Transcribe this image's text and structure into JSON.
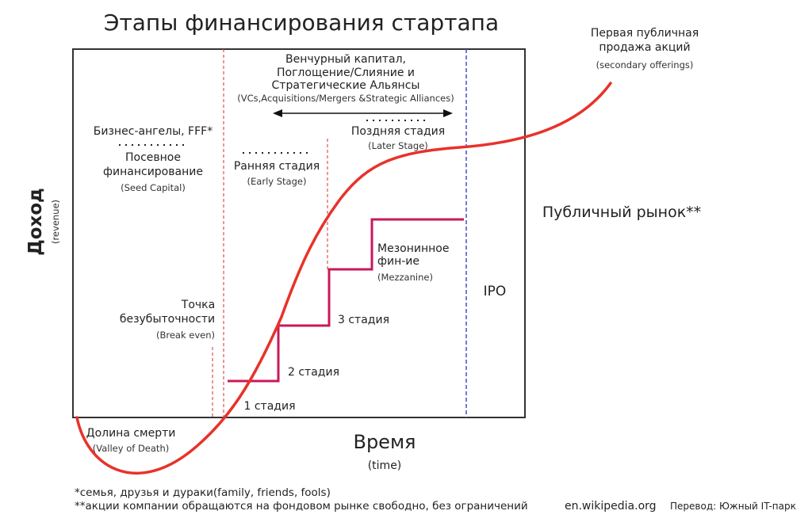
{
  "title": "Этапы финансирования стартапа",
  "y_axis": {
    "label": "Доход",
    "sublabel": "(revenue)"
  },
  "x_axis": {
    "label": "Время",
    "sublabel": "(time)"
  },
  "seed": {
    "line1": "Бизнес-ангелы, FFF*",
    "line2": "Посевное",
    "line3": "финансирование",
    "sub": "(Seed Capital)"
  },
  "venture": {
    "line1": "Венчурный капитал,",
    "line2": "Поглощение/Слияние и",
    "line3": "Стратегические Альянсы",
    "sub": "(VCs,Acquisitions/Mergers &Strategic Alliances)"
  },
  "early_stage": {
    "label": "Ранняя стадия",
    "sub": "(Early Stage)"
  },
  "later_stage": {
    "label": "Поздняя стадия",
    "sub": "(Later Stage)"
  },
  "break_even": {
    "line1": "Точка",
    "line2": "безубыточности",
    "sub": "(Break even)"
  },
  "mezzanine": {
    "line1": "Мезонинное",
    "line2": "фин-ие",
    "sub": "(Mezzanine)"
  },
  "stages": [
    "1 стадия",
    "2 стадия",
    "3 стадия"
  ],
  "ipo": "IPO",
  "public_market": "Публичный рынок**",
  "first_offering": {
    "line1": "Первая публичная",
    "line2": "продажа акций",
    "sub": "(secondary offerings)"
  },
  "valley": {
    "label": "Долина смерти",
    "sub": "(Valley of Death)"
  },
  "footnotes": [
    "*семья, друзья и дураки(family, friends, fools)",
    "**акции компании обращаются на фондовом рынке свободно, без ограничений"
  ],
  "source": "en.wikipedia.org",
  "translation": "Перевод: Южный IT-парк",
  "colors": {
    "curve": "#e8322a",
    "steps": "#c8185a",
    "ipo_line": "#4a4acc",
    "frame": "#333333",
    "dashed": "#e05050"
  }
}
